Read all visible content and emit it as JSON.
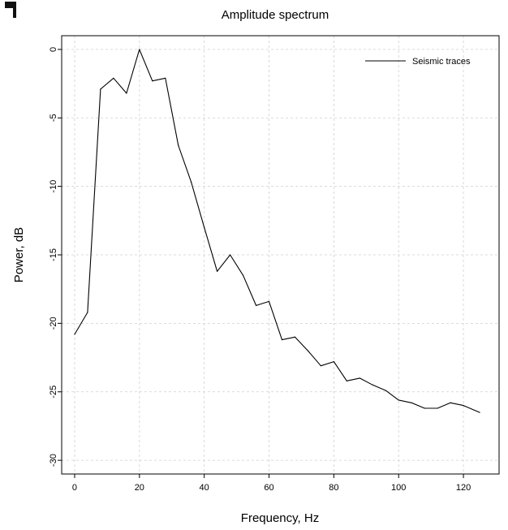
{
  "chart_data": {
    "type": "line",
    "title": "Amplitude spectrum",
    "xlabel": "Frequency, Hz",
    "ylabel": "Power, dB",
    "xlim": [
      -4,
      131
    ],
    "ylim": [
      -31,
      1
    ],
    "xticks": [
      0,
      20,
      40,
      60,
      80,
      100,
      120
    ],
    "yticks": [
      0,
      -5,
      -10,
      -15,
      -20,
      -25,
      -30
    ],
    "xtick_labels": [
      "0",
      "20",
      "40",
      "60",
      "80",
      "100",
      "120"
    ],
    "ytick_labels": [
      "0",
      "-5",
      "-10",
      "-15",
      "-20",
      "-25",
      "-30"
    ],
    "grid": true,
    "legend_position": "top-right",
    "series": [
      {
        "name": "Seismic traces",
        "color": "#000000",
        "x": [
          0,
          4,
          8,
          12,
          16,
          20,
          24,
          28,
          32,
          36,
          40,
          44,
          48,
          52,
          56,
          60,
          64,
          68,
          72,
          76,
          80,
          84,
          88,
          92,
          96,
          100,
          104,
          108,
          112,
          116,
          120,
          125
        ],
        "y": [
          -20.8,
          -19.2,
          -2.9,
          -2.1,
          -3.2,
          0.0,
          -2.3,
          -2.1,
          -7.0,
          -9.7,
          -13.0,
          -16.2,
          -15.0,
          -16.5,
          -18.7,
          -18.4,
          -21.2,
          -21.0,
          -22.0,
          -23.1,
          -22.8,
          -24.2,
          -24.0,
          -24.5,
          -24.9,
          -25.6,
          -25.8,
          -26.2,
          -26.2,
          -25.8,
          -26.0,
          -26.5
        ]
      }
    ]
  }
}
